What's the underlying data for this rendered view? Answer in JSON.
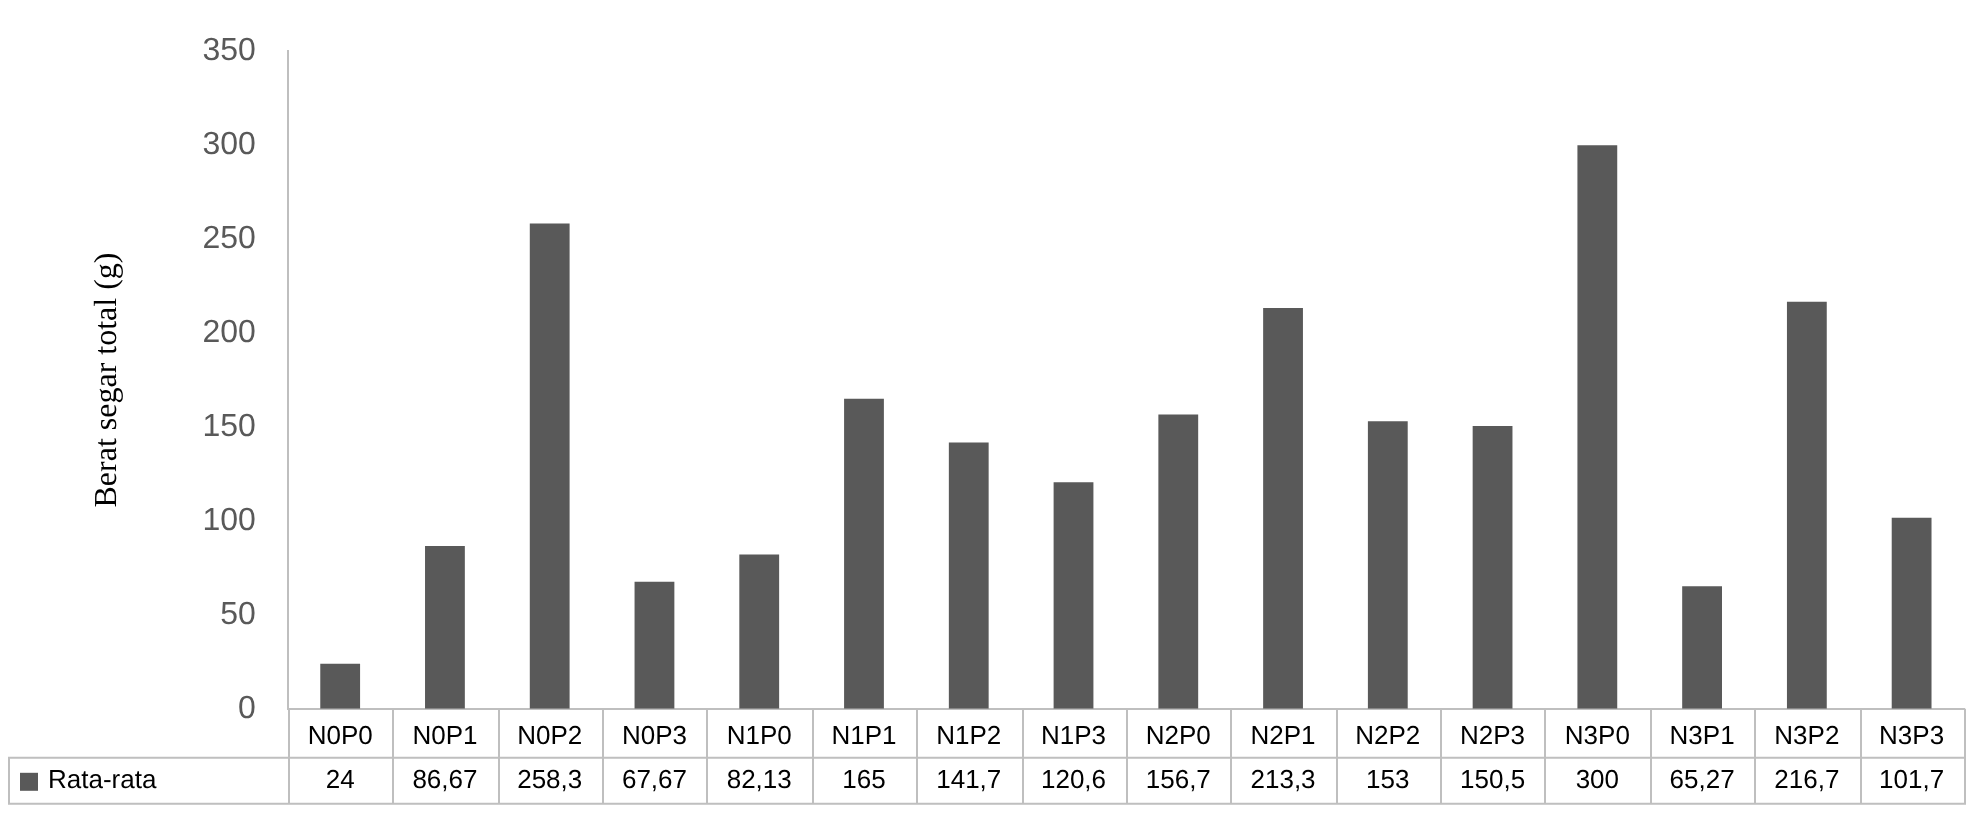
{
  "chart_data": {
    "type": "bar",
    "ylabel": "Berat segar total (g)",
    "categories": [
      "N0P0",
      "N0P1",
      "N0P2",
      "N0P3",
      "N1P0",
      "N1P1",
      "N1P2",
      "N1P3",
      "N2P0",
      "N2P1",
      "N2P2",
      "N2P3",
      "N3P0",
      "N3P1",
      "N3P2",
      "N3P3"
    ],
    "series": [
      {
        "name": "Rata-rata",
        "color": "#595959",
        "values": [
          24,
          86.67,
          258.3,
          67.67,
          82.13,
          165,
          141.7,
          120.6,
          156.7,
          213.3,
          153,
          150.5,
          300,
          65.27,
          216.7,
          101.7
        ],
        "value_labels": [
          "24",
          "86,67",
          "258,3",
          "67,67",
          "82,13",
          "165",
          "141,7",
          "120,6",
          "156,7",
          "213,3",
          "153",
          "150,5",
          "300",
          "65,27",
          "216,7",
          "101,7"
        ]
      }
    ],
    "ylim": [
      0,
      350
    ],
    "yticks": [
      0,
      50,
      100,
      150,
      200,
      250,
      300,
      350
    ],
    "grid": false,
    "legend": "bottom"
  }
}
